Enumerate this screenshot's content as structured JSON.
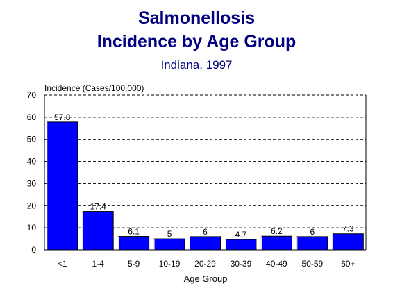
{
  "chart_data": {
    "type": "bar",
    "title": "Salmonellosis",
    "title_line2": "Incidence by Age Group",
    "subtitle": "Indiana, 1997",
    "ylabel": "Incidence (Cases/100,000)",
    "xlabel": "Age Group",
    "categories": [
      "<1",
      "1-4",
      "5-9",
      "10-19",
      "20-29",
      "30-39",
      "40-49",
      "50-59",
      "60+"
    ],
    "values": [
      57.8,
      17.4,
      6.1,
      5,
      6,
      4.7,
      6.2,
      6,
      7.3
    ],
    "ylim": [
      0,
      70
    ],
    "yticks": [
      0,
      10,
      20,
      30,
      40,
      50,
      60,
      70
    ],
    "grid": true,
    "legend": "none",
    "colors": {
      "bar": "#0000ff",
      "title": "#000080",
      "grid": "#000000",
      "axis": "#000000"
    }
  }
}
